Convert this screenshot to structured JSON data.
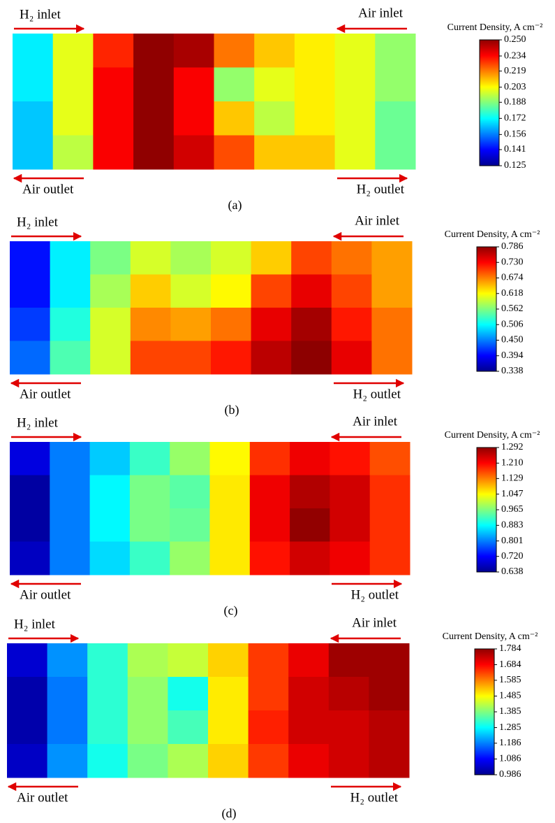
{
  "chart_data": [
    {
      "type": "contour",
      "label": "(a)",
      "colorbar_title": "Current Density, A cm⁻²",
      "annotations": {
        "top_left": "H₂ inlet",
        "top_right": "Air inlet",
        "bottom_left": "Air outlet",
        "bottom_right": "H₂ outlet"
      },
      "zlim": [
        0.125,
        0.25
      ],
      "zticks": [
        {
          "value": 0.25,
          "label": "0.250"
        },
        0.234,
        0.219,
        0.203,
        0.188,
        0.172,
        0.156,
        0.141,
        0.125
      ],
      "z": [
        [
          0.17,
          0.2,
          0.23,
          0.248,
          0.245,
          0.22,
          0.21,
          0.205,
          0.2,
          0.19
        ],
        [
          0.17,
          0.2,
          0.235,
          0.248,
          0.235,
          0.19,
          0.2,
          0.205,
          0.2,
          0.19
        ],
        [
          0.165,
          0.2,
          0.235,
          0.248,
          0.235,
          0.21,
          0.195,
          0.205,
          0.2,
          0.185
        ],
        [
          0.165,
          0.195,
          0.235,
          0.248,
          0.24,
          0.225,
          0.21,
          0.21,
          0.2,
          0.185
        ]
      ]
    },
    {
      "type": "contour",
      "label": "(b)",
      "colorbar_title": "Current Density, A cm⁻²",
      "annotations": {
        "top_left": "H₂ inlet",
        "top_right": "Air inlet",
        "bottom_left": "Air outlet",
        "bottom_right": "H₂ outlet"
      },
      "zlim": [
        0.338,
        0.786
      ],
      "zticks": [
        0.786,
        {
          "value": 0.73,
          "label": "0.730"
        },
        0.674,
        0.618,
        0.562,
        0.506,
        {
          "value": 0.45,
          "label": "0.450"
        },
        0.394,
        0.338
      ],
      "z": [
        [
          0.4,
          0.5,
          0.56,
          0.6,
          0.58,
          0.6,
          0.64,
          0.7,
          0.68,
          0.66
        ],
        [
          0.4,
          0.5,
          0.58,
          0.64,
          0.6,
          0.62,
          0.7,
          0.74,
          0.7,
          0.66
        ],
        [
          0.42,
          0.52,
          0.6,
          0.67,
          0.66,
          0.68,
          0.74,
          0.77,
          0.72,
          0.68
        ],
        [
          0.44,
          0.54,
          0.6,
          0.7,
          0.7,
          0.72,
          0.76,
          0.78,
          0.74,
          0.68
        ]
      ]
    },
    {
      "type": "contour",
      "label": "(c)",
      "colorbar_title": "Current Density, A cm⁻²",
      "annotations": {
        "top_left": "H₂ inlet",
        "top_right": "Air inlet",
        "bottom_left": "Air outlet",
        "bottom_right": "H₂ outlet"
      },
      "zlim": [
        0.638,
        1.292
      ],
      "zticks": [
        1.292,
        {
          "value": 1.21,
          "label": "1.210"
        },
        1.129,
        1.047,
        0.965,
        0.883,
        0.801,
        {
          "value": 0.72,
          "label": "0.720"
        },
        0.638
      ],
      "z": [
        [
          0.7,
          0.8,
          0.85,
          0.92,
          0.98,
          1.05,
          1.18,
          1.22,
          1.2,
          1.16
        ],
        [
          0.66,
          0.8,
          0.88,
          0.96,
          0.94,
          1.06,
          1.22,
          1.26,
          1.24,
          1.18
        ],
        [
          0.66,
          0.8,
          0.88,
          0.96,
          0.95,
          1.06,
          1.22,
          1.28,
          1.24,
          1.18
        ],
        [
          0.68,
          0.8,
          0.86,
          0.92,
          0.98,
          1.06,
          1.2,
          1.24,
          1.22,
          1.18
        ]
      ]
    },
    {
      "type": "contour",
      "label": "(d)",
      "colorbar_title": "Current Density, A cm⁻²",
      "annotations": {
        "top_left": "H₂ inlet",
        "top_right": "Air inlet",
        "bottom_left": "Air outlet",
        "bottom_right": "H₂ outlet"
      },
      "zlim": [
        0.986,
        1.784
      ],
      "zticks": [
        1.784,
        1.684,
        1.585,
        1.485,
        1.385,
        1.285,
        1.186,
        1.086,
        0.986
      ],
      "z": [
        [
          1.05,
          1.2,
          1.32,
          1.42,
          1.44,
          1.52,
          1.64,
          1.7,
          1.76,
          1.76
        ],
        [
          1.02,
          1.18,
          1.32,
          1.4,
          1.3,
          1.5,
          1.64,
          1.72,
          1.74,
          1.76
        ],
        [
          1.02,
          1.18,
          1.32,
          1.4,
          1.34,
          1.5,
          1.66,
          1.72,
          1.72,
          1.74
        ],
        [
          1.04,
          1.2,
          1.3,
          1.38,
          1.42,
          1.52,
          1.64,
          1.7,
          1.72,
          1.74
        ]
      ]
    }
  ]
}
